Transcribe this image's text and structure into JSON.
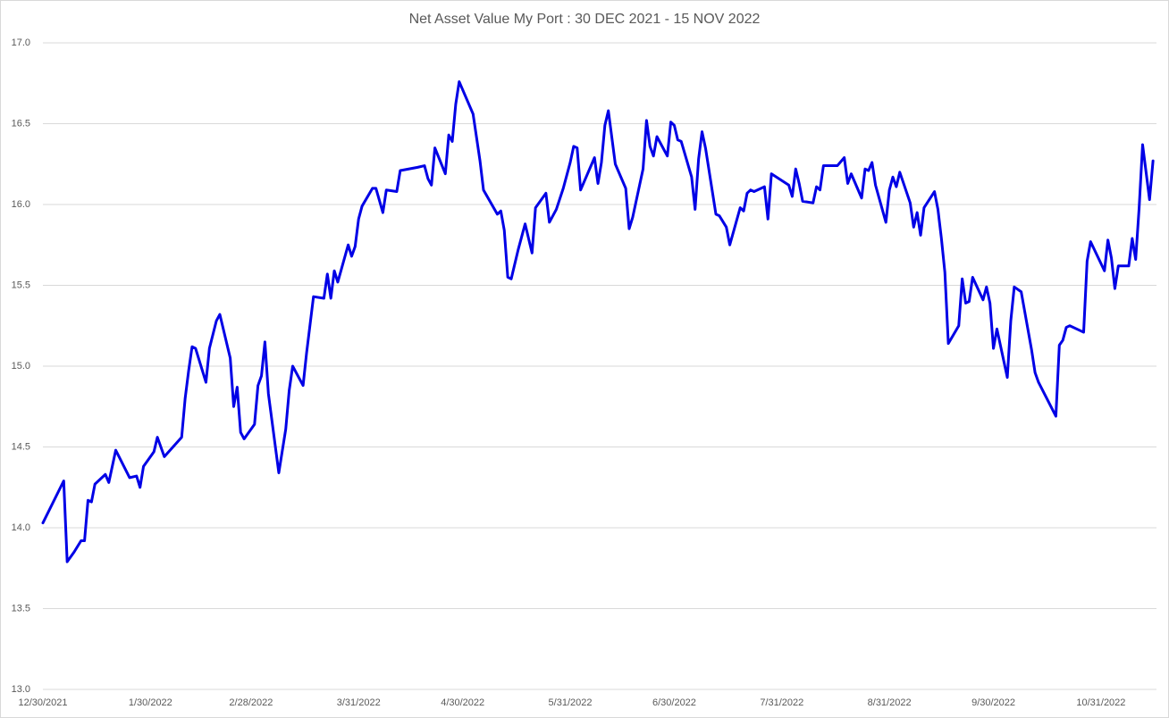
{
  "chart_data": {
    "type": "line",
    "title": "Net Asset Value My Port : 30 DEC 2021 - 15 NOV 2022",
    "x": [
      "12/30/2021",
      "1/5/2022",
      "1/6/2022",
      "1/8/2022",
      "1/10/2022",
      "1/11/2022",
      "1/12/2022",
      "1/13/2022",
      "1/14/2022",
      "1/17/2022",
      "1/18/2022",
      "1/20/2022",
      "1/24/2022",
      "1/26/2022",
      "1/27/2022",
      "1/28/2022",
      "1/31/2022",
      "2/1/2022",
      "2/3/2022",
      "2/8/2022",
      "2/9/2022",
      "2/10/2022",
      "2/11/2022",
      "2/12/2022",
      "2/15/2022",
      "2/16/2022",
      "2/18/2022",
      "2/19/2022",
      "2/22/2022",
      "2/23/2022",
      "2/24/2022",
      "2/25/2022",
      "2/26/2022",
      "3/1/2022",
      "3/2/2022",
      "3/3/2022",
      "3/4/2022",
      "3/5/2022",
      "3/8/2022",
      "3/10/2022",
      "3/11/2022",
      "3/12/2022",
      "3/15/2022",
      "3/16/2022",
      "3/18/2022",
      "3/21/2022",
      "3/22/2022",
      "3/23/2022",
      "3/24/2022",
      "3/25/2022",
      "3/28/2022",
      "3/29/2022",
      "3/30/2022",
      "3/31/2022",
      "4/1/2022",
      "4/4/2022",
      "4/5/2022",
      "4/7/2022",
      "4/8/2022",
      "4/11/2022",
      "4/12/2022",
      "4/17/2022",
      "4/19/2022",
      "4/20/2022",
      "4/21/2022",
      "4/22/2022",
      "4/25/2022",
      "4/26/2022",
      "4/27/2022",
      "4/28/2022",
      "4/29/2022",
      "5/3/2022",
      "5/5/2022",
      "5/6/2022",
      "5/10/2022",
      "5/11/2022",
      "5/12/2022",
      "5/13/2022",
      "5/14/2022",
      "5/16/2022",
      "5/18/2022",
      "5/20/2022",
      "5/21/2022",
      "5/24/2022",
      "5/25/2022",
      "5/27/2022",
      "5/29/2022",
      "5/31/2022",
      "6/1/2022",
      "6/2/2022",
      "6/3/2022",
      "6/7/2022",
      "6/8/2022",
      "6/9/2022",
      "6/10/2022",
      "6/11/2022",
      "6/13/2022",
      "6/16/2022",
      "6/17/2022",
      "6/18/2022",
      "6/21/2022",
      "6/22/2022",
      "6/23/2022",
      "6/24/2022",
      "6/25/2022",
      "6/28/2022",
      "6/29/2022",
      "6/30/2022",
      "7/1/2022",
      "7/2/2022",
      "7/5/2022",
      "7/6/2022",
      "7/7/2022",
      "7/8/2022",
      "7/9/2022",
      "7/12/2022",
      "7/13/2022",
      "7/15/2022",
      "7/16/2022",
      "7/19/2022",
      "7/20/2022",
      "7/21/2022",
      "7/22/2022",
      "7/23/2022",
      "7/26/2022",
      "7/27/2022",
      "7/28/2022",
      "8/2/2022",
      "8/3/2022",
      "8/4/2022",
      "8/5/2022",
      "8/6/2022",
      "8/9/2022",
      "8/10/2022",
      "8/11/2022",
      "8/12/2022",
      "8/16/2022",
      "8/18/2022",
      "8/19/2022",
      "8/20/2022",
      "8/23/2022",
      "8/24/2022",
      "8/25/2022",
      "8/26/2022",
      "8/27/2022",
      "8/30/2022",
      "8/31/2022",
      "9/1/2022",
      "9/2/2022",
      "9/3/2022",
      "9/6/2022",
      "9/7/2022",
      "9/8/2022",
      "9/9/2022",
      "9/10/2022",
      "9/13/2022",
      "9/14/2022",
      "9/15/2022",
      "9/16/2022",
      "9/17/2022",
      "9/20/2022",
      "9/21/2022",
      "9/22/2022",
      "9/23/2022",
      "9/24/2022",
      "9/27/2022",
      "9/28/2022",
      "9/29/2022",
      "9/30/2022",
      "10/1/2022",
      "10/4/2022",
      "10/5/2022",
      "10/6/2022",
      "10/8/2022",
      "10/11/2022",
      "10/12/2022",
      "10/13/2022",
      "10/18/2022",
      "10/19/2022",
      "10/20/2022",
      "10/21/2022",
      "10/22/2022",
      "10/25/2022",
      "10/26/2022",
      "10/27/2022",
      "10/28/2022",
      "11/1/2022",
      "11/2/2022",
      "11/3/2022",
      "11/4/2022",
      "11/5/2022",
      "11/8/2022",
      "11/9/2022",
      "11/10/2022",
      "11/11/2022",
      "11/12/2022",
      "11/14/2022",
      "11/15/2022"
    ],
    "values": [
      14.03,
      14.29,
      13.79,
      13.85,
      13.92,
      13.92,
      14.17,
      14.16,
      14.27,
      14.33,
      14.28,
      14.48,
      14.31,
      14.32,
      14.25,
      14.38,
      14.47,
      14.56,
      14.44,
      14.56,
      14.8,
      14.97,
      15.12,
      15.11,
      14.9,
      15.11,
      15.28,
      15.32,
      15.05,
      14.75,
      14.87,
      14.59,
      14.55,
      14.64,
      14.88,
      14.94,
      15.15,
      14.83,
      14.34,
      14.61,
      14.85,
      15.0,
      14.88,
      15.08,
      15.43,
      15.42,
      15.57,
      15.42,
      15.59,
      15.52,
      15.75,
      15.68,
      15.74,
      15.91,
      15.99,
      16.1,
      16.1,
      15.95,
      16.09,
      16.08,
      16.21,
      16.23,
      16.24,
      16.16,
      16.12,
      16.35,
      16.19,
      16.43,
      16.39,
      16.62,
      16.76,
      16.56,
      16.27,
      16.09,
      15.94,
      15.96,
      15.84,
      15.55,
      15.54,
      15.72,
      15.88,
      15.7,
      15.98,
      16.07,
      15.89,
      15.97,
      16.1,
      16.26,
      16.36,
      16.35,
      16.09,
      16.29,
      16.13,
      16.26,
      16.49,
      16.58,
      16.25,
      16.1,
      15.85,
      15.92,
      16.22,
      16.52,
      16.36,
      16.3,
      16.42,
      16.3,
      16.51,
      16.49,
      16.4,
      16.39,
      16.17,
      15.97,
      16.28,
      16.45,
      16.35,
      15.94,
      15.93,
      15.86,
      15.75,
      15.98,
      15.96,
      16.07,
      16.09,
      16.08,
      16.11,
      15.91,
      16.19,
      16.12,
      16.05,
      16.22,
      16.13,
      16.02,
      16.01,
      16.11,
      16.09,
      16.24,
      16.24,
      16.29,
      16.13,
      16.19,
      16.04,
      16.22,
      16.21,
      16.26,
      16.12,
      15.89,
      16.09,
      16.17,
      16.11,
      16.2,
      16.01,
      15.86,
      15.95,
      15.81,
      15.98,
      16.08,
      15.97,
      15.79,
      15.58,
      15.14,
      15.25,
      15.54,
      15.39,
      15.4,
      15.55,
      15.41,
      15.49,
      15.39,
      15.11,
      15.23,
      14.93,
      15.28,
      15.49,
      15.46,
      15.1,
      14.96,
      14.9,
      14.69,
      15.13,
      15.16,
      15.24,
      15.25,
      15.22,
      15.21,
      15.65,
      15.77,
      15.59,
      15.78,
      15.67,
      15.48,
      15.62,
      15.62,
      15.79,
      15.66,
      15.98,
      16.37,
      16.03,
      16.27
    ],
    "color": "#0000e6",
    "xlim": [
      "12/30/2021",
      "11/16/2022"
    ],
    "xticks": [
      "12/30/2021",
      "1/30/2022",
      "2/28/2022",
      "3/31/2022",
      "4/30/2022",
      "5/31/2022",
      "6/30/2022",
      "7/31/2022",
      "8/31/2022",
      "9/30/2022",
      "10/31/2022"
    ],
    "ylim": [
      13,
      17
    ],
    "yticks": [
      {
        "value": 13,
        "label": "13.0"
      },
      13.5,
      {
        "value": 14,
        "label": "14.0"
      },
      14.5,
      {
        "value": 15,
        "label": "15.0"
      },
      15.5,
      {
        "value": 16,
        "label": "16.0"
      },
      16.5,
      {
        "value": 17,
        "label": "17.0"
      }
    ],
    "grid": true
  }
}
